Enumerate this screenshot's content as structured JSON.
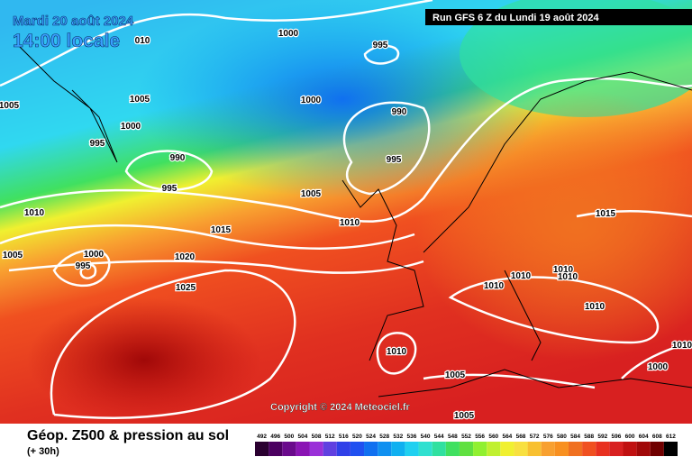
{
  "header": {
    "date": "Mardi 20 août 2024",
    "time": "14:00 locale",
    "run": "Run GFS 6 Z du Lundi 19 août 2024"
  },
  "footer": {
    "title": "Géop. Z500 & pression au sol",
    "lead": "(+ 30h)",
    "copyright": "Copyright © 2024 Meteociel.fr"
  },
  "isobar_labels": [
    "1000",
    "995",
    "010",
    "1005",
    "1005",
    "1000",
    "990",
    "1000",
    "995",
    "990",
    "995",
    "995",
    "1005",
    "1010",
    "1010",
    "1015",
    "1015",
    "1005",
    "1000",
    "995",
    "1020",
    "1010",
    "1010",
    "1010",
    "1025",
    "1010",
    "1010",
    "1010",
    "1005",
    "1005",
    "1000",
    "1010"
  ],
  "legend": {
    "levels": [
      492,
      496,
      500,
      504,
      508,
      512,
      516,
      520,
      524,
      528,
      532,
      536,
      540,
      544,
      548,
      552,
      556,
      560,
      564,
      568,
      572,
      576,
      580,
      584,
      588,
      592,
      596,
      600,
      604,
      608,
      612
    ],
    "colors": [
      "#2a0030",
      "#4b0060",
      "#6a0a8c",
      "#8a14b4",
      "#9a30d8",
      "#6040e0",
      "#3040e8",
      "#2050f0",
      "#1070f0",
      "#1090f0",
      "#10b0f0",
      "#20d0f0",
      "#30e0d0",
      "#30e0a0",
      "#40e060",
      "#60e040",
      "#90f030",
      "#c0f030",
      "#f0f030",
      "#f8e040",
      "#f8c030",
      "#f8a030",
      "#f89020",
      "#f07020",
      "#f05020",
      "#e83020",
      "#d82020",
      "#c01010",
      "#a00808",
      "#700000",
      "#000000"
    ]
  }
}
